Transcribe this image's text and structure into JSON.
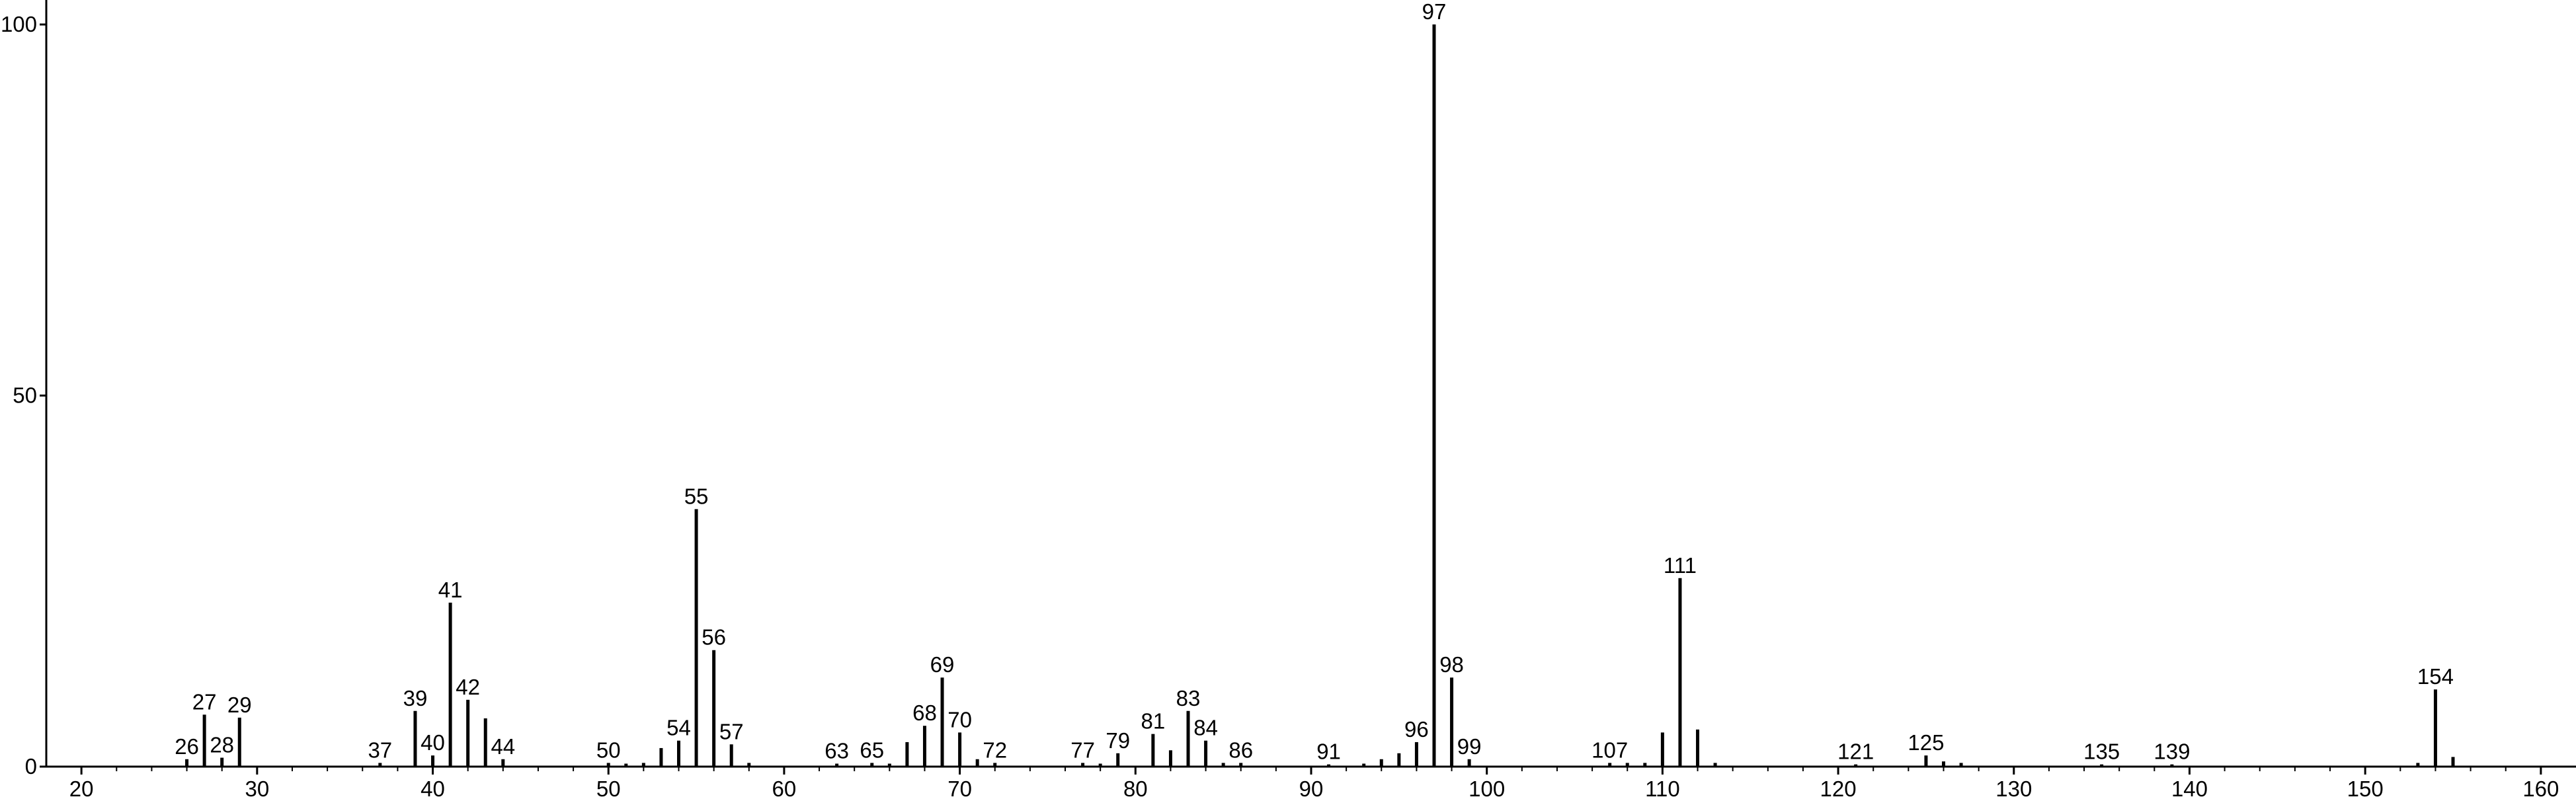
{
  "chart_data": {
    "type": "stem",
    "x": [
      26,
      27,
      28,
      29,
      37,
      39,
      40,
      41,
      42,
      43,
      44,
      50,
      51,
      52,
      53,
      54,
      55,
      56,
      57,
      58,
      63,
      65,
      66,
      67,
      68,
      69,
      70,
      71,
      72,
      77,
      78,
      79,
      81,
      82,
      83,
      84,
      85,
      86,
      91,
      93,
      94,
      95,
      96,
      97,
      98,
      99,
      107,
      108,
      109,
      110,
      111,
      112,
      113,
      121,
      125,
      126,
      127,
      135,
      139,
      153,
      154,
      155
    ],
    "values": [
      1,
      7,
      1.2,
      6.6,
      0.5,
      7.5,
      1.5,
      22.1,
      9,
      6.5,
      1,
      0.5,
      0.4,
      0.5,
      2.5,
      3.5,
      34.7,
      15.7,
      3,
      0.5,
      0.4,
      0.5,
      0.4,
      3.3,
      5.5,
      12,
      4.6,
      1,
      0.5,
      0.5,
      0.4,
      1.8,
      4.4,
      2.2,
      7.5,
      3.5,
      0.5,
      0.5,
      0.3,
      0.4,
      1,
      1.8,
      3.3,
      100,
      12,
      1,
      0.5,
      0.5,
      0.5,
      4.6,
      25.4,
      5,
      0.5,
      0.3,
      1.5,
      0.7,
      0.5,
      0.3,
      0.3,
      0.5,
      10.4,
      1.3
    ],
    "labeled": [
      true,
      true,
      true,
      true,
      true,
      true,
      true,
      true,
      true,
      false,
      true,
      true,
      false,
      false,
      false,
      true,
      true,
      true,
      true,
      false,
      true,
      true,
      false,
      false,
      true,
      true,
      true,
      false,
      true,
      true,
      false,
      true,
      true,
      false,
      true,
      true,
      false,
      true,
      true,
      false,
      false,
      false,
      true,
      true,
      true,
      true,
      true,
      false,
      false,
      false,
      true,
      false,
      false,
      true,
      true,
      false,
      false,
      true,
      true,
      false,
      true,
      false
    ],
    "color": "#000000",
    "xlim": [
      18,
      162
    ],
    "xticks": [
      20,
      30,
      40,
      50,
      60,
      70,
      80,
      90,
      100,
      110,
      120,
      130,
      140,
      150,
      160
    ],
    "xminorticks": [
      22,
      24,
      26,
      28,
      32,
      34,
      36,
      38,
      42,
      44,
      46,
      48,
      52,
      54,
      56,
      58,
      62,
      64,
      66,
      68,
      72,
      74,
      76,
      78,
      82,
      84,
      86,
      88,
      92,
      94,
      96,
      98,
      102,
      104,
      106,
      108,
      112,
      114,
      116,
      118,
      122,
      124,
      126,
      128,
      132,
      134,
      136,
      138,
      142,
      144,
      146,
      148,
      152,
      154,
      156,
      158
    ],
    "ylim": [
      0,
      103.3
    ],
    "yticks": [
      0,
      50,
      100
    ]
  }
}
